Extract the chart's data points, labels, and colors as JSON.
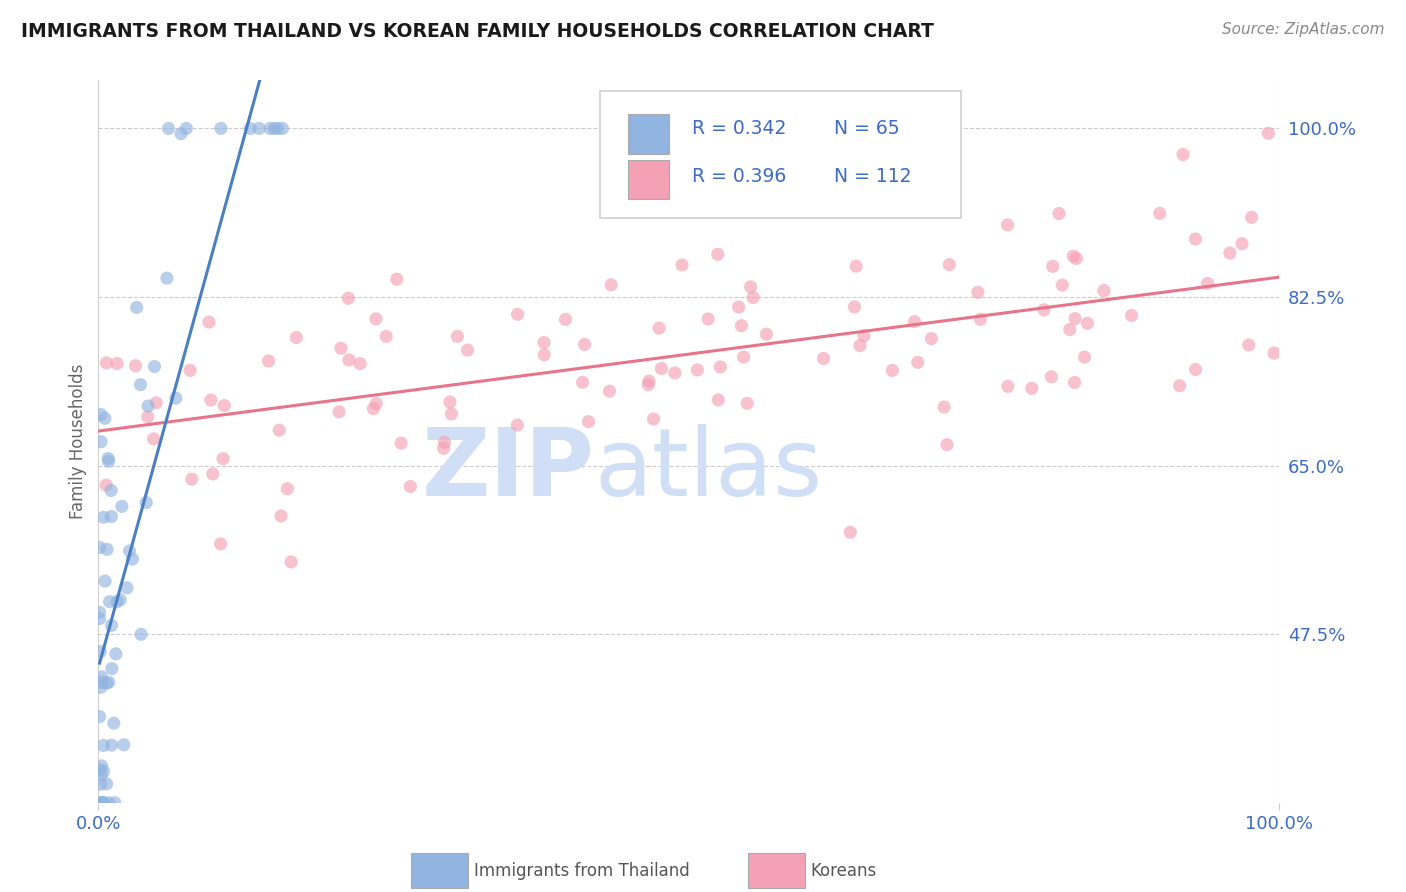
{
  "title": "IMMIGRANTS FROM THAILAND VS KOREAN FAMILY HOUSEHOLDS CORRELATION CHART",
  "source_text": "Source: ZipAtlas.com",
  "ylabel": "Family Households",
  "xlim": [
    0.0,
    1.0
  ],
  "ylim": [
    0.3,
    1.05
  ],
  "yticks": [
    0.475,
    0.65,
    0.825,
    1.0
  ],
  "ytick_labels": [
    "47.5%",
    "65.0%",
    "82.5%",
    "100.0%"
  ],
  "xtick_labels": [
    "0.0%",
    "100.0%"
  ],
  "legend_r1": "R = 0.342",
  "legend_n1": "N = 65",
  "legend_r2": "R = 0.396",
  "legend_n2": "N = 112",
  "color_blue": "#92b4e0",
  "color_pink": "#f4a0b5",
  "color_blue_line": "#4a7fc1",
  "color_pink_line": "#e8748a",
  "color_title": "#1a1a1a",
  "color_axis_labels": "#3b6bc7",
  "watermark_zip": "ZIP",
  "watermark_atlas": "atlas",
  "watermark_color": "#d0dff5",
  "background_color": "#ffffff",
  "grid_color": "#cccccc",
  "thai_seed": 42,
  "korean_seed": 99
}
